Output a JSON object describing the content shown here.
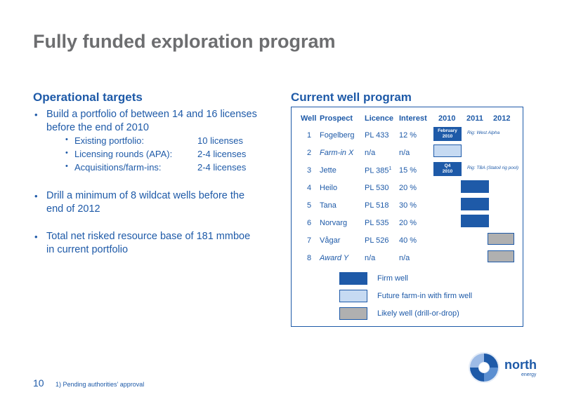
{
  "title": "Fully funded exploration program",
  "left": {
    "heading": "Operational targets",
    "bullet1_line1": "Build a portfolio of between 14 and 16 licenses",
    "bullet1_line2": "before the end of 2010",
    "sub": [
      {
        "label": "Existing portfolio:",
        "value": "10 licenses"
      },
      {
        "label": "Licensing rounds (APA):",
        "value": "2-4 licenses"
      },
      {
        "label": "Acquisitions/farm-ins:",
        "value": "2-4 licenses"
      }
    ],
    "bullet2_line1": "Drill a minimum of 8 wildcat wells before the",
    "bullet2_line2": "end of 2012",
    "bullet3_line1": "Total net risked resource base of 181 mmboe",
    "bullet3_line2": "in current portfolio"
  },
  "right": {
    "heading": "Current well program",
    "headers": {
      "well": "Well",
      "prospect": "Prospect",
      "licence": "Licence",
      "interest": "Interest",
      "y2010": "2010",
      "y2011": "2011",
      "y2012": "2012"
    },
    "rows": [
      {
        "well": "1",
        "prospect": "Fogelberg",
        "licence": "PL 433",
        "interest": "12 %",
        "bar_label_1": "February",
        "bar_label_2": "2010",
        "rig": "Rig: West Alpha"
      },
      {
        "well": "2",
        "prospect": "Farm-in X",
        "licence": "n/a",
        "interest": "n/a"
      },
      {
        "well": "3",
        "prospect": "Jette",
        "licence": "PL 385",
        "licence_sup": "1",
        "interest": "15 %",
        "bar_label_1": "Q4",
        "bar_label_2": "2010",
        "rig": "Rig: TBA (Statoil rig pool)"
      },
      {
        "well": "4",
        "prospect": "Heilo",
        "licence": "PL 530",
        "interest": "20 %"
      },
      {
        "well": "5",
        "prospect": "Tana",
        "licence": "PL 518",
        "interest": "30 %"
      },
      {
        "well": "6",
        "prospect": "Norvarg",
        "licence": "PL 535",
        "interest": "20 %"
      },
      {
        "well": "7",
        "prospect": "Vågar",
        "licence": "PL 526",
        "interest": "40 %"
      },
      {
        "well": "8",
        "prospect": "Award Y",
        "licence": "n/a",
        "interest": "n/a"
      }
    ],
    "legend": {
      "firm": "Firm well",
      "future": "Future farm-in with firm well",
      "likely": "Likely well (drill-or-drop)"
    }
  },
  "footer": {
    "page": "10",
    "footnote": "1) Pending authorities’ approval",
    "logo_main": "north",
    "logo_sub": "energy"
  },
  "colors": {
    "accent": "#1e5aa8",
    "title_gray": "#6d6e70",
    "future_fill": "#c6daf2",
    "likely_fill": "#b0b0b0"
  }
}
